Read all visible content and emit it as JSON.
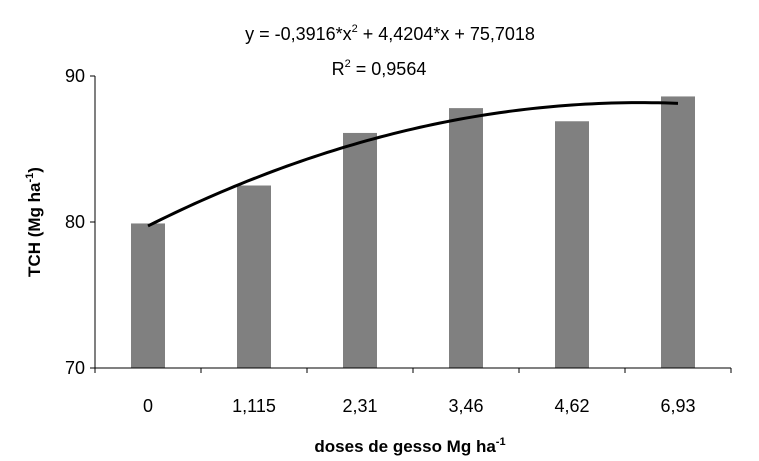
{
  "chart_data": {
    "type": "bar",
    "categories": [
      "0",
      "1,115",
      "2,31",
      "3,46",
      "4,62",
      "6,93"
    ],
    "values": [
      79.9,
      82.5,
      86.1,
      87.8,
      86.9,
      88.6
    ],
    "bar_color": "#808080",
    "ylim": [
      70,
      90
    ],
    "yticks": [
      "70",
      "80",
      "90"
    ],
    "ylabel": "TCH (Mg ha",
    "ylabel_sup": "-1",
    "ylabel_close": ")",
    "xlabel": "doses de gesso Mg ha",
    "xlabel_sup": "-1",
    "trendline": {
      "type": "polynomial",
      "coefficients": [
        -0.3916,
        4.4204,
        75.7018
      ],
      "x_range": [
        1,
        6
      ],
      "color": "#000000"
    },
    "equation": {
      "part1": "y = -0,3916*x",
      "exp1": "2",
      "part2": " + 4,4204*x + 75,7018",
      "r2_label": "R",
      "r2_exp": "2",
      "r2_value": " = 0,9564"
    },
    "grid": false,
    "legend": "none"
  }
}
